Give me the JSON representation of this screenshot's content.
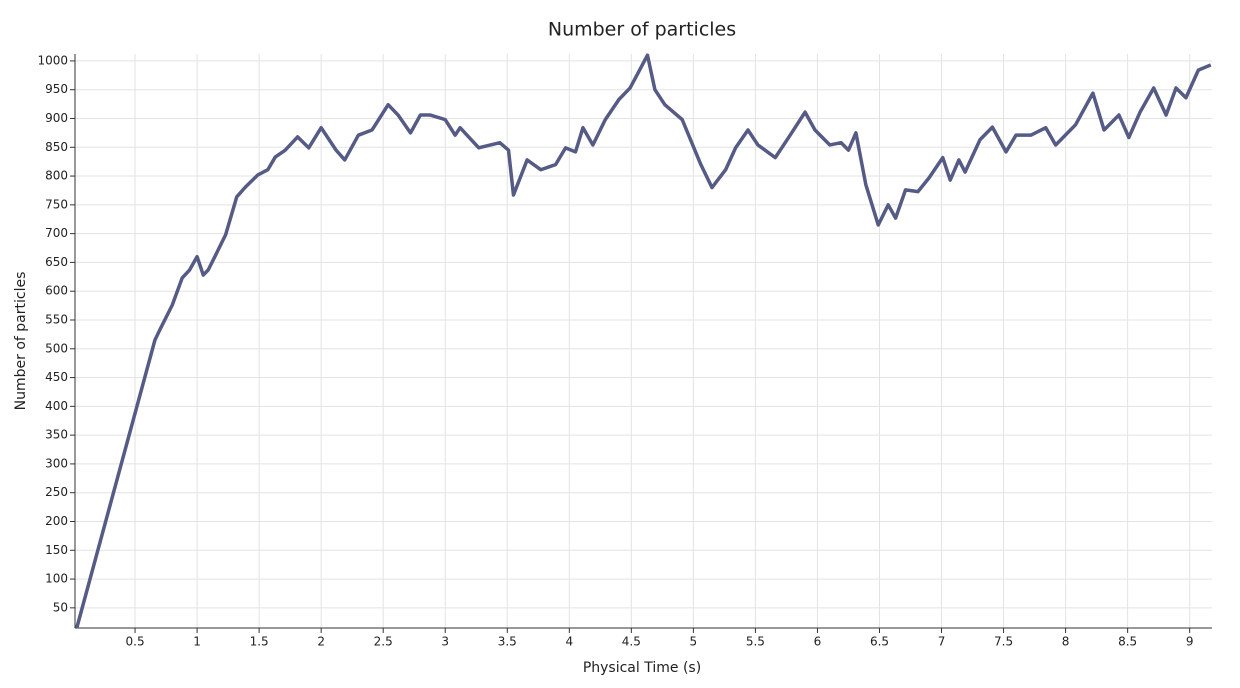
{
  "chart_data": {
    "type": "line",
    "title": "Number of particles",
    "x_label": "Physical Time (s)",
    "y_label": "Number of particles",
    "xlim": [
      0.016,
      9.18
    ],
    "ylim": [
      15,
      1012
    ],
    "xticks": [
      0.5,
      1,
      1.5,
      2,
      2.5,
      3,
      3.5,
      4,
      4.5,
      5,
      5.5,
      6,
      6.5,
      7,
      7.5,
      8,
      8.5,
      9
    ],
    "yticks": [
      50,
      100,
      150,
      200,
      250,
      300,
      350,
      400,
      450,
      500,
      550,
      600,
      650,
      700,
      750,
      800,
      850,
      900,
      950,
      1000
    ],
    "grid": true,
    "x": [
      0.03,
      0.66,
      0.7,
      0.8,
      0.88,
      0.94,
      1.0,
      1.05,
      1.09,
      1.15,
      1.23,
      1.32,
      1.39,
      1.49,
      1.57,
      1.63,
      1.71,
      1.81,
      1.9,
      2.0,
      2.12,
      2.19,
      2.3,
      2.41,
      2.54,
      2.62,
      2.72,
      2.8,
      2.88,
      3.0,
      3.08,
      3.12,
      3.27,
      3.44,
      3.51,
      3.55,
      3.66,
      3.77,
      3.89,
      3.97,
      4.05,
      4.11,
      4.19,
      4.29,
      4.4,
      4.49,
      4.63,
      4.69,
      4.77,
      4.91,
      5.06,
      5.15,
      5.26,
      5.34,
      5.44,
      5.52,
      5.66,
      5.78,
      5.9,
      5.98,
      6.1,
      6.19,
      6.25,
      6.31,
      6.39,
      6.49,
      6.57,
      6.63,
      6.71,
      6.81,
      6.9,
      7.01,
      7.07,
      7.14,
      7.19,
      7.31,
      7.41,
      7.52,
      7.6,
      7.72,
      7.84,
      7.92,
      8.08,
      8.22,
      8.31,
      8.43,
      8.51,
      8.6,
      8.71,
      8.81,
      8.89,
      8.97,
      9.07,
      9.17
    ],
    "series": [
      {
        "name": "Number of particles",
        "color": "#555b85",
        "values": [
          15,
          515,
          533,
          576,
          623,
          637,
          660,
          628,
          637,
          663,
          698,
          764,
          781,
          802,
          811,
          833,
          845,
          868,
          849,
          884,
          845,
          828,
          871,
          880,
          924,
          906,
          875,
          906,
          906,
          898,
          871,
          884,
          849,
          858,
          845,
          767,
          828,
          811,
          820,
          849,
          842,
          884,
          854,
          898,
          933,
          953,
          1010,
          950,
          924,
          898,
          820,
          780,
          811,
          849,
          880,
          854,
          832,
          871,
          911,
          880,
          854,
          858,
          845,
          875,
          785,
          715,
          750,
          727,
          776,
          773,
          797,
          832,
          793,
          828,
          807,
          863,
          885,
          842,
          871,
          871,
          884,
          854,
          889,
          944,
          880,
          906,
          867,
          911,
          953,
          906,
          953,
          936,
          984,
          993
        ]
      }
    ]
  }
}
